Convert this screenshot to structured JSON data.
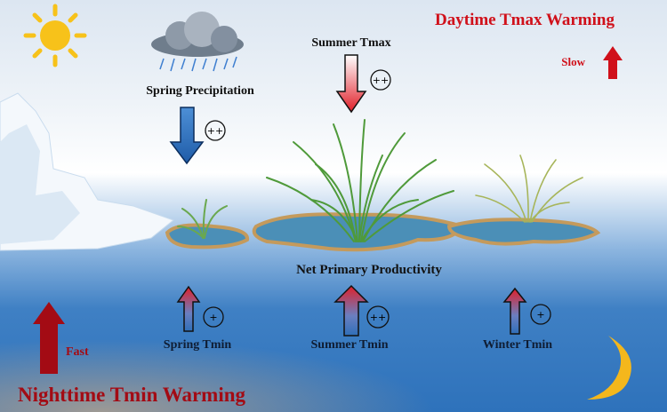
{
  "title_day": "Daytime Tmax Warming",
  "title_night": "Nighttime Tmin Warming",
  "rate_day": "Slow",
  "rate_night": "Fast",
  "center_label": "Net Primary Productivity",
  "drivers_top": [
    {
      "label": "Spring Precipitation",
      "effect": "++",
      "direction": "down",
      "icon": "rain-cloud-icon"
    },
    {
      "label": "Summer Tmax",
      "effect": "++",
      "direction": "down"
    }
  ],
  "drivers_bottom": [
    {
      "label": "Spring Tmin",
      "effect": "+",
      "direction": "up"
    },
    {
      "label": "Summer Tmin",
      "effect": "++",
      "direction": "up"
    },
    {
      "label": "Winter Tmin",
      "effect": "+",
      "direction": "up"
    }
  ],
  "icons": [
    "sun-icon",
    "moon-icon",
    "rain-cloud-icon",
    "glacier-icon",
    "grass-icon"
  ],
  "colors": {
    "warming_red": "#d0101a",
    "dark_red": "#a30b14",
    "precip_blue": "#2f6fb8",
    "sky_bottom": "#2e72bb",
    "sun": "#f7c21a",
    "moon": "#f4b71c"
  }
}
